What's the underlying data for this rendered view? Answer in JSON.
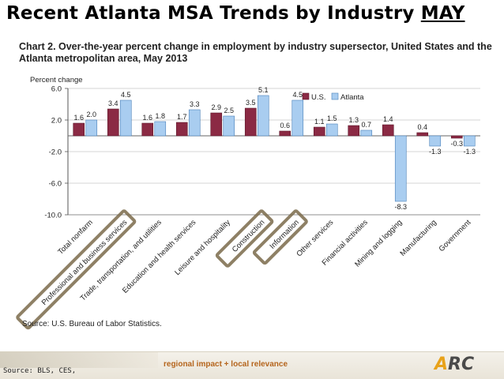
{
  "slide": {
    "title_prefix": "Recent Atlanta MSA Trends by Industry ",
    "title_month": "MAY",
    "source_note": "Source: BLS, CES,",
    "tagline": "regional impact + local relevance",
    "logo_text": "ARC"
  },
  "chart_data": {
    "type": "bar",
    "title": "Chart 2. Over-the-year percent change in employment by industry supersector, United States and the Atlanta metropolitan area, May 2013",
    "ylabel": "Percent change",
    "ylim": [
      -10,
      6
    ],
    "yticks": [
      6,
      2,
      -2,
      -6,
      -10
    ],
    "ytick_labels": [
      "6.0",
      "2.0",
      "-2.0",
      "-6.0",
      "-10.0"
    ],
    "legend_position": "top-right",
    "categories": [
      "Total nonfarm",
      "Professional and business services",
      "Trade, transportation, and utilities",
      "Education and health services",
      "Leisure and hospitality",
      "Construction",
      "Information",
      "Other services",
      "Financial activities",
      "Mining and logging",
      "Manufacturing",
      "Government"
    ],
    "series": [
      {
        "name": "U.S.",
        "color": "#8b2a44",
        "values": [
          1.6,
          3.4,
          1.6,
          1.7,
          2.9,
          3.5,
          0.6,
          1.1,
          1.3,
          1.4,
          0.4,
          -0.3
        ]
      },
      {
        "name": "Atlanta",
        "color": "#a9cdf0",
        "values": [
          2.0,
          4.5,
          1.8,
          3.3,
          2.5,
          5.1,
          4.5,
          1.5,
          0.7,
          -8.3,
          -1.3,
          -1.3
        ]
      }
    ],
    "data_labels": {
      "us": [
        "1.6",
        "3.4",
        "1.6",
        "1.7",
        "2.9",
        "3.5",
        "0.6",
        "1.1",
        "1.3",
        "1.4",
        "0.4",
        "-0.3"
      ],
      "atlanta": [
        "2.0",
        "4.5",
        "1.8",
        "3.3",
        "2.5",
        "5.1",
        "4.5",
        "1.5",
        "0.7",
        "-8.3",
        "-1.3",
        "-1.3"
      ]
    },
    "highlighted_categories": [
      "Professional and business services",
      "Construction",
      "Information"
    ],
    "source": "Source: U.S. Bureau of Labor Statistics."
  }
}
